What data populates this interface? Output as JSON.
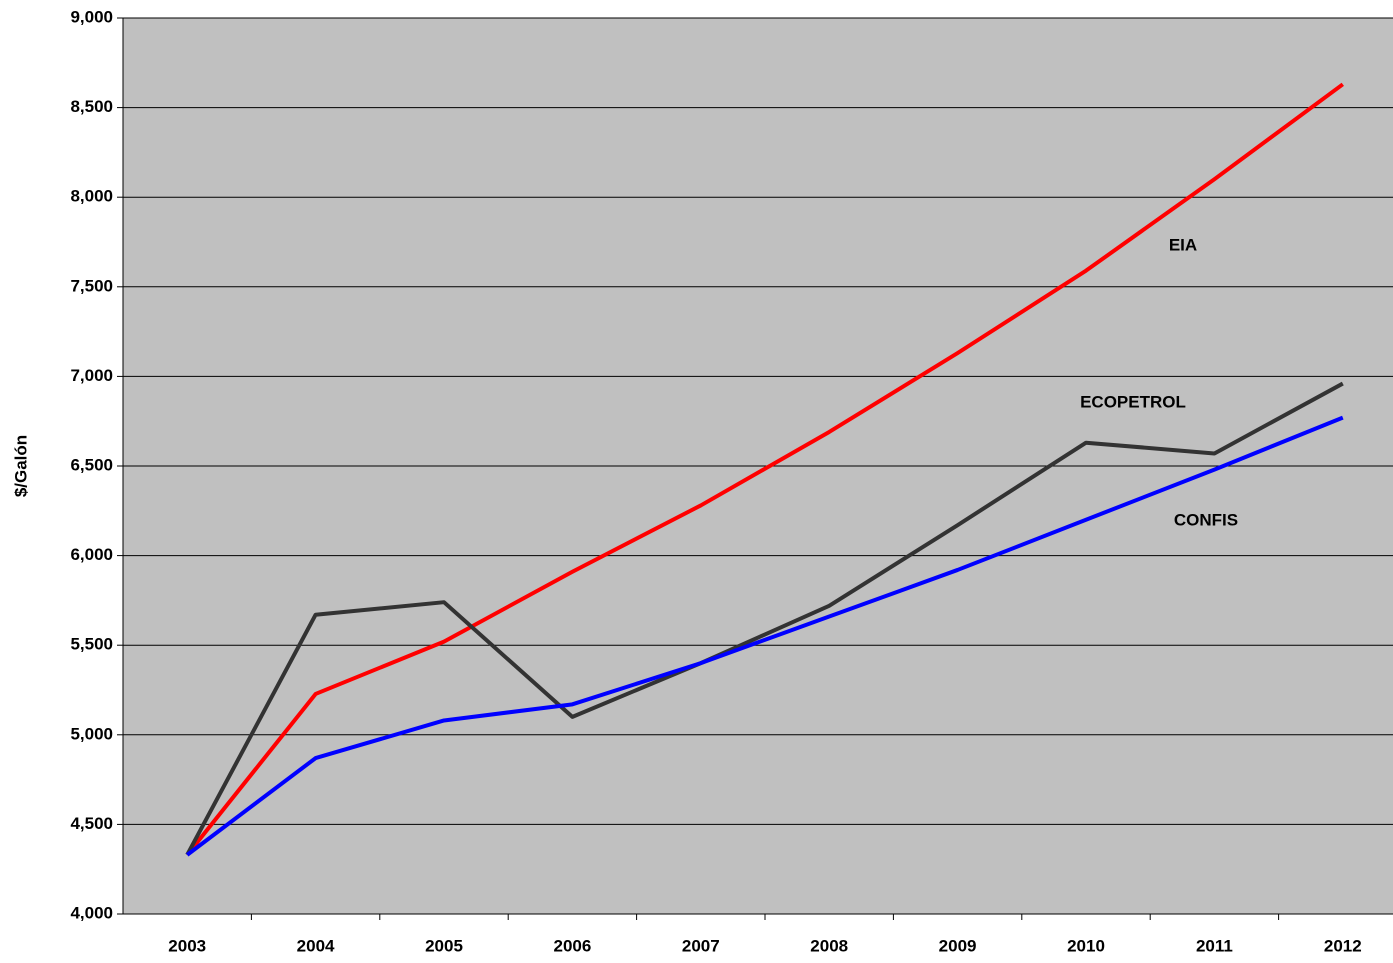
{
  "chart_data": {
    "type": "line",
    "y_label": "$/Galón",
    "categories": [
      "2003",
      "2004",
      "2005",
      "2006",
      "2007",
      "2008",
      "2009",
      "2010",
      "2011",
      "2012"
    ],
    "series": [
      {
        "name": "EIA",
        "color": "#ff0000",
        "values": [
          4330,
          5228,
          5520,
          5910,
          6280,
          6690,
          7130,
          7590,
          8100,
          8630
        ]
      },
      {
        "name": "ECOPETROL",
        "color": "#333333",
        "values": [
          4330,
          5670,
          5740,
          5100,
          5400,
          5720,
          6170,
          6630,
          6570,
          6960
        ]
      },
      {
        "name": "CONFIS",
        "color": "#0000ff",
        "values": [
          4330,
          4870,
          5080,
          5170,
          5400,
          5660,
          5920,
          6200,
          6480,
          6770
        ]
      }
    ],
    "ylim": [
      4000,
      9000
    ],
    "yticks": [
      {
        "value": 4000,
        "label": "4,000"
      },
      {
        "value": 4500,
        "label": "4,500"
      },
      {
        "value": 5000,
        "label": "5,000"
      },
      {
        "value": 5500,
        "label": "5,500"
      },
      {
        "value": 6000,
        "label": "6,000"
      },
      {
        "value": 6500,
        "label": "6,500"
      },
      {
        "value": 7000,
        "label": "7,000"
      },
      {
        "value": 7500,
        "label": "7,500"
      },
      {
        "value": 8000,
        "label": "8,000"
      },
      {
        "value": 8500,
        "label": "8,500"
      },
      {
        "value": 9000,
        "label": "9,000"
      }
    ],
    "grid": true
  }
}
